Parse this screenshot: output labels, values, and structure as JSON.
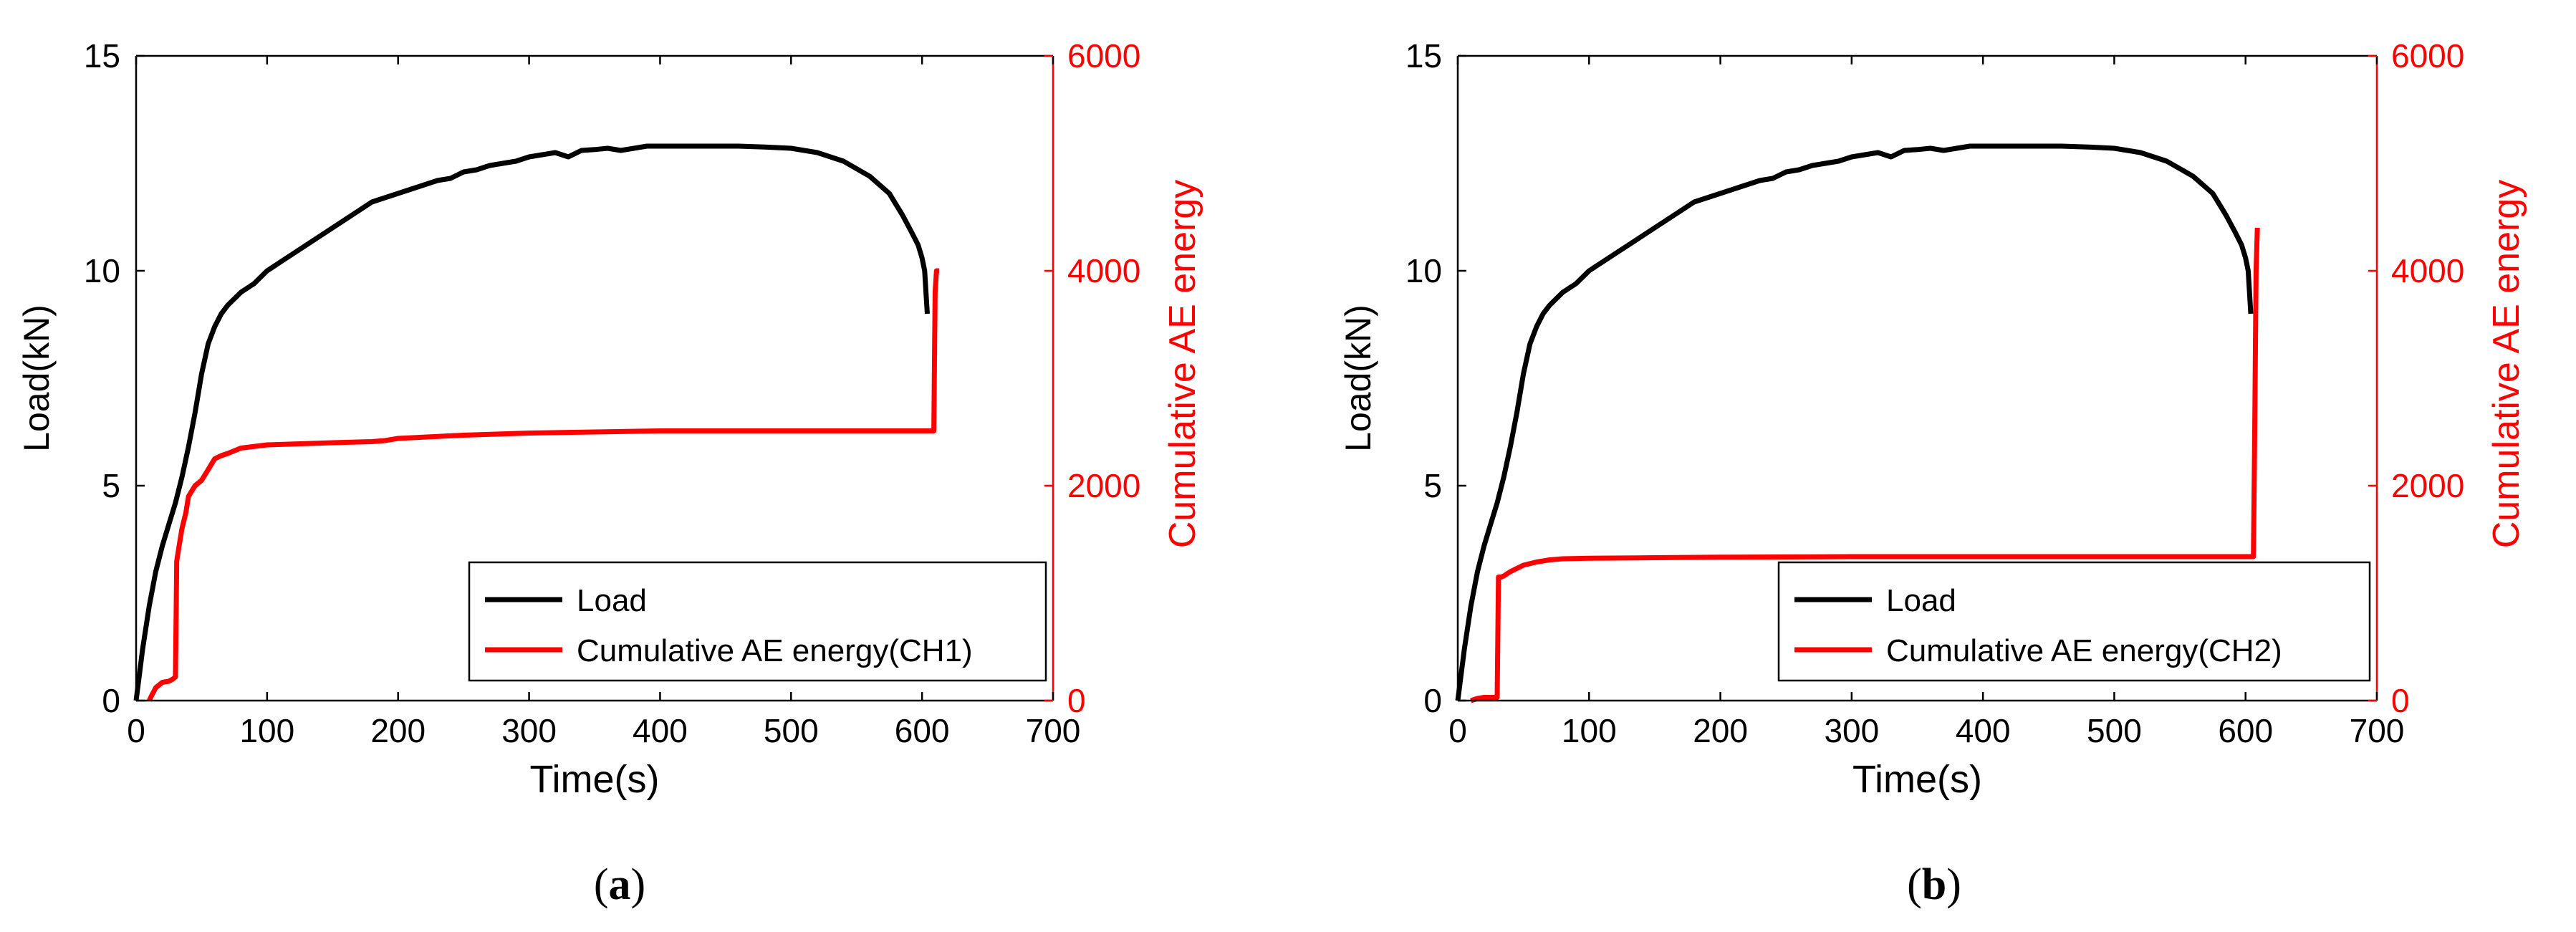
{
  "colors": {
    "load": "#000000",
    "ae": "#ff0000",
    "axis": "#000000",
    "background": "#ffffff"
  },
  "chart_data": [
    {
      "type": "line",
      "label": "(a)",
      "label_letter": "a",
      "xlabel": "Time(s)",
      "ylabel_left": "Load(kN)",
      "ylabel_right": "Cumulative AE energy",
      "xlim": [
        0,
        700
      ],
      "ylim_left": [
        0,
        15
      ],
      "ylim_right": [
        0,
        6000
      ],
      "xticks": [
        "0",
        "100",
        "200",
        "300",
        "400",
        "500",
        "600",
        "700"
      ],
      "yticks_left": [
        "0",
        "5",
        "10",
        "15"
      ],
      "yticks_right": [
        "0",
        "2000",
        "4000",
        "6000"
      ],
      "legend": [
        "Load",
        "Cumulative AE energy(CH1)"
      ],
      "legend_position": "bottom-right",
      "series": [
        {
          "name": "Load",
          "axis": "left",
          "x": [
            0,
            5,
            10,
            15,
            20,
            25,
            30,
            35,
            40,
            45,
            50,
            55,
            60,
            65,
            70,
            80,
            90,
            100,
            110,
            120,
            130,
            140,
            150,
            160,
            170,
            180,
            190,
            200,
            210,
            220,
            230,
            240,
            250,
            260,
            270,
            280,
            290,
            300,
            310,
            320,
            330,
            340,
            350,
            360,
            370,
            380,
            390,
            400,
            420,
            440,
            460,
            480,
            500,
            520,
            540,
            560,
            575,
            585,
            592,
            597,
            600,
            602,
            603,
            604
          ],
          "y": [
            0,
            1.2,
            2.2,
            3.0,
            3.6,
            4.1,
            4.6,
            5.2,
            5.9,
            6.7,
            7.6,
            8.3,
            8.7,
            9.0,
            9.2,
            9.5,
            9.7,
            10.0,
            10.2,
            10.4,
            10.6,
            10.8,
            11.0,
            11.2,
            11.4,
            11.6,
            11.7,
            11.8,
            11.9,
            12.0,
            12.1,
            12.15,
            12.3,
            12.35,
            12.45,
            12.5,
            12.55,
            12.65,
            12.7,
            12.75,
            12.65,
            12.8,
            12.82,
            12.85,
            12.8,
            12.85,
            12.9,
            12.9,
            12.9,
            12.9,
            12.9,
            12.88,
            12.85,
            12.75,
            12.55,
            12.2,
            11.8,
            11.3,
            10.9,
            10.6,
            10.3,
            10.0,
            9.5,
            9.0
          ]
        },
        {
          "name": "Cumulative AE energy(CH1)",
          "axis": "right",
          "x": [
            10,
            12,
            15,
            20,
            25,
            28,
            30,
            31,
            33,
            35,
            38,
            40,
            45,
            50,
            55,
            60,
            65,
            70,
            80,
            100,
            150,
            180,
            190,
            200,
            250,
            300,
            350,
            400,
            500,
            600,
            609,
            610,
            611,
            613
          ],
          "y": [
            0,
            50,
            120,
            170,
            180,
            200,
            220,
            1300,
            1450,
            1600,
            1750,
            1900,
            2000,
            2050,
            2150,
            2250,
            2280,
            2300,
            2350,
            2380,
            2400,
            2410,
            2420,
            2440,
            2470,
            2490,
            2500,
            2510,
            2510,
            2510,
            2510,
            3800,
            4000,
            4000
          ]
        }
      ]
    },
    {
      "type": "line",
      "label": "(b)",
      "label_letter": "b",
      "xlabel": "Time(s)",
      "ylabel_left": "Load(kN)",
      "ylabel_right": "Cumulative AE energy",
      "xlim": [
        0,
        700
      ],
      "ylim_left": [
        0,
        15
      ],
      "ylim_right": [
        0,
        6000
      ],
      "xticks": [
        "0",
        "100",
        "200",
        "300",
        "400",
        "500",
        "600",
        "700"
      ],
      "yticks_left": [
        "0",
        "5",
        "10",
        "15"
      ],
      "yticks_right": [
        "0",
        "2000",
        "4000",
        "6000"
      ],
      "legend": [
        "Load",
        "Cumulative AE energy(CH2)"
      ],
      "legend_position": "bottom-right",
      "series": [
        {
          "name": "Load",
          "axis": "left",
          "x": [
            0,
            5,
            10,
            15,
            20,
            25,
            30,
            35,
            40,
            45,
            50,
            55,
            60,
            65,
            70,
            80,
            90,
            100,
            110,
            120,
            130,
            140,
            150,
            160,
            170,
            180,
            190,
            200,
            210,
            220,
            230,
            240,
            250,
            260,
            270,
            280,
            290,
            300,
            310,
            320,
            330,
            340,
            350,
            360,
            370,
            380,
            390,
            400,
            420,
            440,
            460,
            480,
            500,
            520,
            540,
            560,
            575,
            585,
            592,
            597,
            600,
            602,
            603,
            604
          ],
          "y": [
            0,
            1.2,
            2.2,
            3.0,
            3.6,
            4.1,
            4.6,
            5.2,
            5.9,
            6.7,
            7.6,
            8.3,
            8.7,
            9.0,
            9.2,
            9.5,
            9.7,
            10.0,
            10.2,
            10.4,
            10.6,
            10.8,
            11.0,
            11.2,
            11.4,
            11.6,
            11.7,
            11.8,
            11.9,
            12.0,
            12.1,
            12.15,
            12.3,
            12.35,
            12.45,
            12.5,
            12.55,
            12.65,
            12.7,
            12.75,
            12.65,
            12.8,
            12.82,
            12.85,
            12.8,
            12.85,
            12.9,
            12.9,
            12.9,
            12.9,
            12.9,
            12.88,
            12.85,
            12.75,
            12.55,
            12.2,
            11.8,
            11.3,
            10.9,
            10.6,
            10.3,
            10.0,
            9.5,
            9.0
          ]
        },
        {
          "name": "Cumulative AE energy(CH2)",
          "axis": "right",
          "x": [
            10,
            15,
            20,
            25,
            30,
            31,
            33,
            35,
            40,
            45,
            50,
            60,
            70,
            80,
            100,
            150,
            200,
            300,
            400,
            500,
            600,
            606,
            607,
            608,
            609
          ],
          "y": [
            0,
            20,
            30,
            30,
            30,
            1150,
            1150,
            1160,
            1200,
            1230,
            1260,
            1290,
            1310,
            1320,
            1325,
            1330,
            1335,
            1340,
            1340,
            1340,
            1340,
            1340,
            2500,
            4000,
            4400
          ]
        }
      ]
    }
  ]
}
